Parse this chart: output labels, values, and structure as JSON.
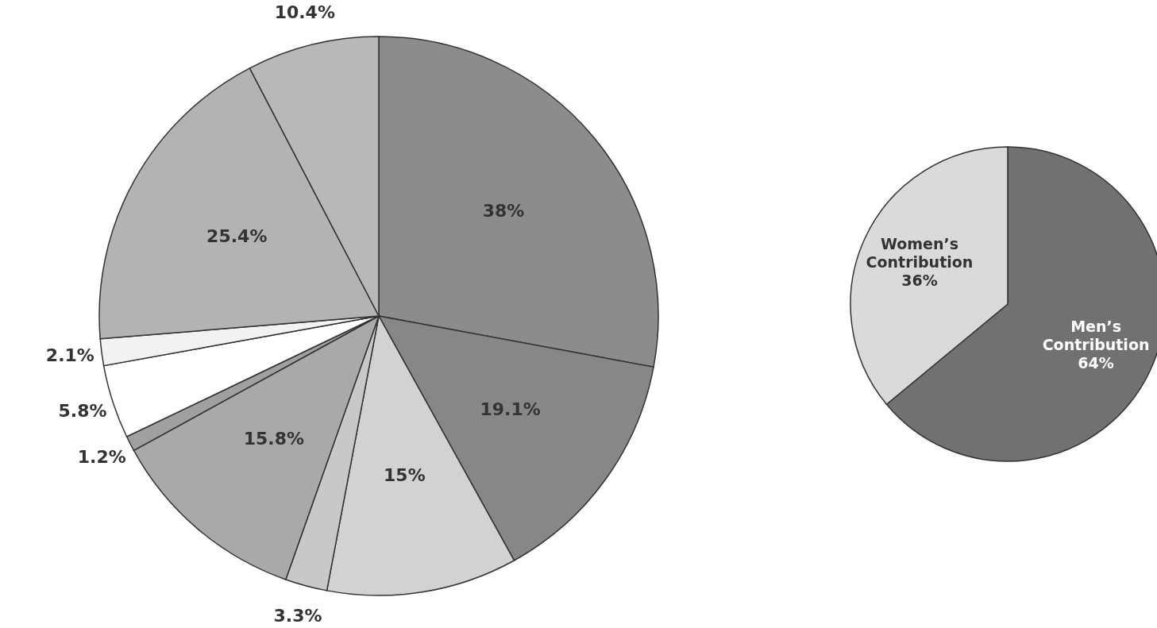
{
  "chart_data": [
    {
      "type": "pie",
      "categories": [
        null,
        null,
        null,
        null,
        null,
        null,
        null,
        null,
        null,
        null
      ],
      "values": [
        38,
        19.1,
        15,
        3.3,
        15.8,
        1.2,
        5.8,
        2.1,
        25.4,
        10.4
      ],
      "value_labels": [
        "38%",
        "19.1%",
        "15%",
        "3.3%",
        "15.8%",
        "1.2%",
        "5.8%",
        "2.1%",
        "25.4%",
        "10.4%"
      ],
      "colors": [
        "#8c8c8c",
        "#878787",
        "#d2d2d2",
        "#c8c8c8",
        "#a9a9a9",
        "#a0a0a0",
        "#ffffff",
        "#f2f2f2",
        "#b3b3b3",
        "#b8b8b8"
      ]
    },
    {
      "type": "pie",
      "categories": [
        "Men’s Contribution",
        "Women’s Contribution"
      ],
      "values": [
        64,
        36
      ],
      "value_labels": [
        "64%",
        "36%"
      ],
      "colors": [
        "#717171",
        "#dadada"
      ]
    }
  ]
}
